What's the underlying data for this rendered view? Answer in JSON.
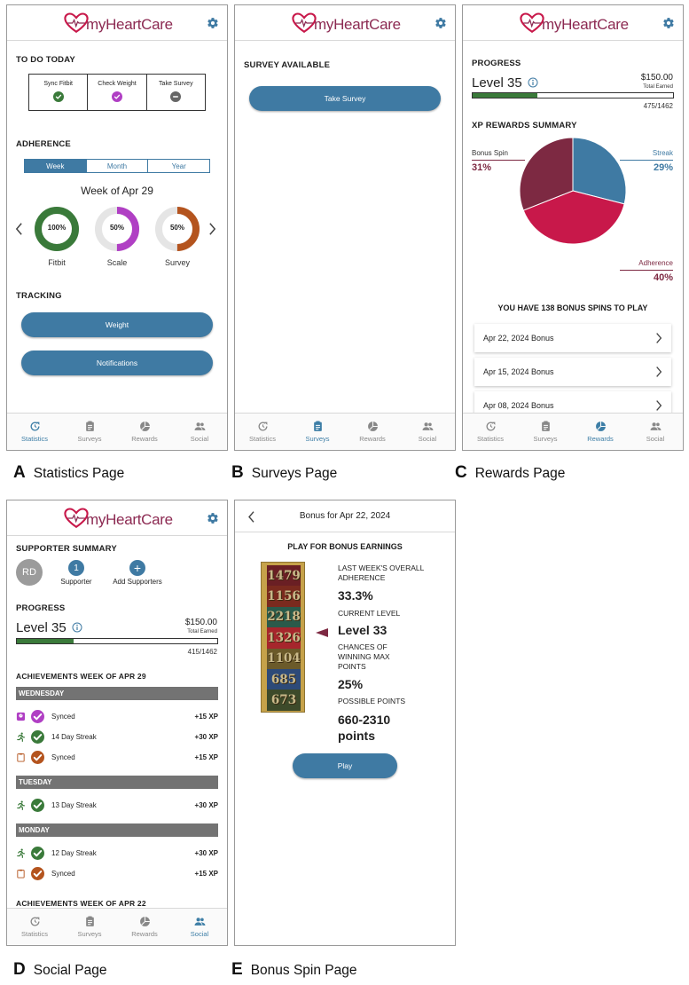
{
  "app": {
    "logo_prefix": "my",
    "logo_main": "HeartCare"
  },
  "tabs": [
    "Statistics",
    "Surveys",
    "Rewards",
    "Social"
  ],
  "captions": [
    {
      "letter": "A",
      "text": "Statistics Page"
    },
    {
      "letter": "B",
      "text": "Surveys Page"
    },
    {
      "letter": "C",
      "text": "Rewards Page"
    },
    {
      "letter": "D",
      "text": "Social Page"
    },
    {
      "letter": "E",
      "text": "Bonus Spin Page"
    }
  ],
  "statistics": {
    "todo_title": "TO DO TODAY",
    "todo": [
      {
        "label": "Sync Fitbit",
        "status": "done",
        "color": "#3a7a3a"
      },
      {
        "label": "Check Weight",
        "status": "done",
        "color": "#b03fc4"
      },
      {
        "label": "Take Survey",
        "status": "pending",
        "color": "#666666"
      }
    ],
    "adherence_title": "ADHERENCE",
    "segments": [
      "Week",
      "Month",
      "Year"
    ],
    "selected_segment": "Week",
    "week_label": "Week of Apr 29",
    "rings": [
      {
        "pct_text": "100%",
        "label": "Fitbit",
        "value": 1.0,
        "color": "#3a7a3a"
      },
      {
        "pct_text": "50%",
        "label": "Scale",
        "value": 0.5,
        "color": "#b03fc4"
      },
      {
        "pct_text": "50%",
        "label": "Survey",
        "value": 0.5,
        "color": "#b4541e"
      }
    ],
    "tracking_title": "TRACKING",
    "buttons": [
      "Weight",
      "Notifications"
    ],
    "active_tab": "Statistics"
  },
  "surveys": {
    "title": "SURVEY AVAILABLE",
    "button": "Take Survey",
    "active_tab": "Surveys"
  },
  "rewards": {
    "progress_title": "PROGRESS",
    "level": "Level 35",
    "amount": "$150.00",
    "earned_label": "Total Earned",
    "progress_text": "475/1462",
    "progress_value": 0.325,
    "summary_title": "XP REWARDS SUMMARY",
    "chart_data": {
      "type": "pie",
      "title": "XP REWARDS SUMMARY",
      "slices": [
        {
          "name": "Streak",
          "value": 29,
          "label": "29%",
          "color": "#3f7aa3"
        },
        {
          "name": "Adherence",
          "value": 40,
          "label": "40%",
          "color": "#c8184a"
        },
        {
          "name": "Bonus Spin",
          "value": 31,
          "label": "31%",
          "color": "#7d2942"
        }
      ]
    },
    "spins_title": "YOU HAVE 138 BONUS SPINS TO PLAY",
    "bonus_rows": [
      "Apr 22, 2024 Bonus",
      "Apr 15, 2024 Bonus",
      "Apr 08, 2024 Bonus"
    ],
    "active_tab": "Rewards"
  },
  "social": {
    "supporter_title": "SUPPORTER SUMMARY",
    "avatar_initials": "RD",
    "supporter_count": "1",
    "supporter_label": "Supporter",
    "add_label": "Add Supporters",
    "add_symbol": "+",
    "progress_title": "PROGRESS",
    "level": "Level 35",
    "amount": "$150.00",
    "earned_label": "Total Earned",
    "progress_text": "415/1462",
    "progress_value": 0.284,
    "ach_title": "ACHIEVEMENTS WEEK OF APR 29",
    "days": [
      {
        "day": "WEDNESDAY",
        "items": [
          {
            "icon": "scale-icon",
            "check_color": "#b03fc4",
            "text": "Synced",
            "xp": "+15 XP"
          },
          {
            "icon": "runner-icon",
            "check_color": "#3a7a3a",
            "text": "14 Day Streak",
            "xp": "+30 XP"
          },
          {
            "icon": "clipboard-icon",
            "check_color": "#b4541e",
            "text": "Synced",
            "xp": "+15 XP"
          }
        ]
      },
      {
        "day": "TUESDAY",
        "items": [
          {
            "icon": "runner-icon",
            "check_color": "#3a7a3a",
            "text": "13 Day Streak",
            "xp": "+30 XP"
          }
        ]
      },
      {
        "day": "MONDAY",
        "items": [
          {
            "icon": "runner-icon",
            "check_color": "#3a7a3a",
            "text": "12 Day Streak",
            "xp": "+30 XP"
          },
          {
            "icon": "clipboard-icon",
            "check_color": "#b4541e",
            "text": "Synced",
            "xp": "+15 XP"
          }
        ]
      }
    ],
    "ach_title2": "ACHIEVEMENTS WEEK OF APR 22",
    "active_tab": "Social"
  },
  "bonus": {
    "nav_title": "Bonus for Apr 22, 2024",
    "play_title": "PLAY FOR BONUS EARNINGS",
    "reel": [
      "1479",
      "1156",
      "2218",
      "1326",
      "1104",
      "685",
      "673"
    ],
    "reel_colors": [
      "#6a1f24",
      "#7a2a1e",
      "#2a5a4a",
      "#a6262c",
      "#6b5a2a",
      "#2d4a78",
      "#3d4a2a"
    ],
    "info": [
      {
        "label": "LAST WEEK'S OVERALL ADHERENCE",
        "value": "33.3%"
      },
      {
        "label": "CURRENT LEVEL",
        "value": "Level 33"
      },
      {
        "label": "CHANCES OF WINNING MAX POINTS",
        "value": "25%"
      },
      {
        "label": "POSSIBLE POINTS",
        "value": "660-2310 points"
      }
    ],
    "play_button": "Play"
  }
}
